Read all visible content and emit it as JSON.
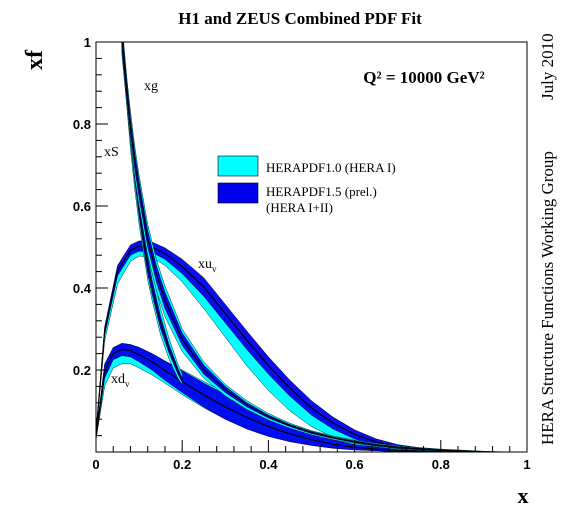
{
  "chart_data": {
    "type": "area",
    "title": "H1 and ZEUS Combined PDF Fit",
    "xlabel": "x",
    "ylabel": "xf",
    "xlim": [
      0,
      1
    ],
    "ylim": [
      0,
      1
    ],
    "x_ticks": [
      0,
      0.2,
      0.4,
      0.6,
      0.8,
      1
    ],
    "x_tick_labels": [
      "0",
      "0.2",
      "0.4",
      "0.6",
      "0.8",
      "1"
    ],
    "y_ticks": [
      0.2,
      0.4,
      0.6,
      0.8,
      1
    ],
    "y_tick_labels": [
      "0.2",
      "0.4",
      "0.6",
      "0.8",
      "1"
    ],
    "annotation_q2": "Q² = 10000 GeV²",
    "side_text_date": "July 2010",
    "side_text_group": "HERA Structure Functions Working Group",
    "legend": {
      "position": "upper-center",
      "entries": [
        {
          "label": "HERAPDF1.0 (HERA I)",
          "color": "#00ffff"
        },
        {
          "label": "HERAPDF1.5 (prel.) (HERA I+II)",
          "label_line1": "HERAPDF1.5 (prel.)",
          "label_line2": "(HERA I+II)",
          "color": "#0000ee"
        }
      ]
    },
    "colors": {
      "herapdf10": "#00ffff",
      "herapdf15": "#0000ee",
      "central": "#000000"
    },
    "curve_labels": {
      "xg": {
        "base": "xg",
        "sub": ""
      },
      "xS": {
        "base": "xS",
        "sub": ""
      },
      "xuv": {
        "base": "xu",
        "sub": "v"
      },
      "xdv": {
        "base": "xd",
        "sub": "v"
      }
    },
    "series": [
      {
        "name": "xu_v",
        "x": [
          0.0,
          0.02,
          0.05,
          0.08,
          0.1,
          0.13,
          0.16,
          0.2,
          0.25,
          0.3,
          0.35,
          0.4,
          0.45,
          0.5,
          0.55,
          0.6,
          0.65,
          0.7,
          0.8,
          0.9
        ],
        "herapdf10": {
          "lo": [
            0.04,
            0.27,
            0.41,
            0.465,
            0.478,
            0.475,
            0.455,
            0.415,
            0.35,
            0.28,
            0.21,
            0.15,
            0.1,
            0.062,
            0.036,
            0.019,
            0.009,
            0.004,
            0.0,
            0.0
          ],
          "hi": [
            0.05,
            0.3,
            0.44,
            0.49,
            0.5,
            0.495,
            0.48,
            0.45,
            0.39,
            0.325,
            0.26,
            0.2,
            0.148,
            0.105,
            0.072,
            0.045,
            0.025,
            0.012,
            0.002,
            0.0
          ]
        },
        "herapdf15": {
          "lo": [
            0.04,
            0.285,
            0.43,
            0.48,
            0.49,
            0.487,
            0.47,
            0.435,
            0.38,
            0.315,
            0.25,
            0.19,
            0.136,
            0.09,
            0.056,
            0.032,
            0.017,
            0.008,
            0.001,
            0.0
          ],
          "hi": [
            0.05,
            0.305,
            0.455,
            0.505,
            0.515,
            0.512,
            0.498,
            0.47,
            0.425,
            0.36,
            0.295,
            0.232,
            0.175,
            0.125,
            0.085,
            0.054,
            0.032,
            0.018,
            0.003,
            0.0
          ]
        }
      },
      {
        "name": "xd_v",
        "x": [
          0.0,
          0.02,
          0.04,
          0.06,
          0.08,
          0.1,
          0.13,
          0.16,
          0.2,
          0.25,
          0.3,
          0.35,
          0.4,
          0.45,
          0.5,
          0.55,
          0.6,
          0.7,
          0.8,
          0.9
        ],
        "herapdf10": {
          "lo": [
            0.03,
            0.16,
            0.205,
            0.215,
            0.215,
            0.205,
            0.188,
            0.168,
            0.14,
            0.108,
            0.08,
            0.058,
            0.04,
            0.027,
            0.017,
            0.01,
            0.006,
            0.001,
            0.0,
            0.0
          ],
          "hi": [
            0.04,
            0.2,
            0.25,
            0.265,
            0.262,
            0.255,
            0.24,
            0.222,
            0.2,
            0.172,
            0.145,
            0.118,
            0.093,
            0.07,
            0.05,
            0.034,
            0.022,
            0.008,
            0.002,
            0.0
          ]
        },
        "herapdf15": {
          "lo": [
            0.03,
            0.18,
            0.225,
            0.235,
            0.232,
            0.22,
            0.2,
            0.175,
            0.145,
            0.11,
            0.08,
            0.056,
            0.038,
            0.025,
            0.016,
            0.009,
            0.005,
            0.001,
            0.0,
            0.0
          ],
          "hi": [
            0.04,
            0.215,
            0.255,
            0.265,
            0.262,
            0.255,
            0.24,
            0.222,
            0.198,
            0.168,
            0.14,
            0.112,
            0.086,
            0.063,
            0.044,
            0.029,
            0.018,
            0.006,
            0.001,
            0.0
          ]
        }
      },
      {
        "name": "xg",
        "x": [
          0.06,
          0.07,
          0.08,
          0.09,
          0.1,
          0.11,
          0.12,
          0.13,
          0.15,
          0.17,
          0.19,
          0.2
        ],
        "herapdf10": {
          "lo": [
            0.99,
            0.86,
            0.74,
            0.64,
            0.555,
            0.485,
            0.42,
            0.37,
            0.285,
            0.225,
            0.18,
            0.165
          ],
          "hi": [
            1.05,
            0.93,
            0.82,
            0.72,
            0.64,
            0.565,
            0.5,
            0.445,
            0.35,
            0.275,
            0.215,
            0.19
          ]
        },
        "herapdf15": {
          "lo": [
            1.0,
            0.875,
            0.76,
            0.66,
            0.575,
            0.5,
            0.435,
            0.385,
            0.3,
            0.24,
            0.19,
            0.17
          ],
          "hi": [
            1.04,
            0.915,
            0.8,
            0.7,
            0.615,
            0.54,
            0.475,
            0.42,
            0.33,
            0.26,
            0.205,
            0.18
          ]
        }
      },
      {
        "name": "xS",
        "x": [
          0.06,
          0.07,
          0.08,
          0.09,
          0.1,
          0.12,
          0.14,
          0.16,
          0.2,
          0.25,
          0.3,
          0.35,
          0.4,
          0.45,
          0.5,
          0.55,
          0.6,
          0.65,
          0.7,
          0.8,
          0.9,
          0.95
        ],
        "herapdf10": {
          "lo": [
            0.97,
            0.86,
            0.76,
            0.67,
            0.6,
            0.48,
            0.395,
            0.33,
            0.245,
            0.18,
            0.137,
            0.104,
            0.078,
            0.058,
            0.042,
            0.03,
            0.021,
            0.014,
            0.009,
            0.003,
            0.0,
            0.0
          ],
          "hi": [
            1.04,
            0.925,
            0.83,
            0.745,
            0.675,
            0.555,
            0.47,
            0.405,
            0.3,
            0.22,
            0.165,
            0.125,
            0.094,
            0.07,
            0.052,
            0.039,
            0.029,
            0.021,
            0.015,
            0.007,
            0.002,
            0.0
          ]
        },
        "herapdf15": {
          "lo": [
            0.985,
            0.875,
            0.775,
            0.69,
            0.62,
            0.5,
            0.415,
            0.35,
            0.26,
            0.19,
            0.145,
            0.11,
            0.083,
            0.062,
            0.045,
            0.033,
            0.023,
            0.015,
            0.01,
            0.003,
            0.0,
            0.0
          ],
          "hi": [
            1.03,
            0.915,
            0.815,
            0.73,
            0.66,
            0.54,
            0.455,
            0.39,
            0.29,
            0.212,
            0.16,
            0.12,
            0.09,
            0.067,
            0.05,
            0.037,
            0.027,
            0.019,
            0.013,
            0.006,
            0.001,
            0.0
          ]
        }
      }
    ]
  }
}
